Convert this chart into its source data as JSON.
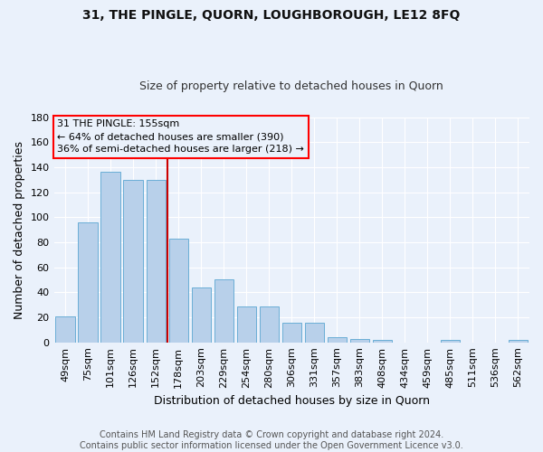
{
  "title": "31, THE PINGLE, QUORN, LOUGHBOROUGH, LE12 8FQ",
  "subtitle": "Size of property relative to detached houses in Quorn",
  "xlabel": "Distribution of detached houses by size in Quorn",
  "ylabel": "Number of detached properties",
  "bar_labels": [
    "49sqm",
    "75sqm",
    "101sqm",
    "126sqm",
    "152sqm",
    "178sqm",
    "203sqm",
    "229sqm",
    "254sqm",
    "280sqm",
    "306sqm",
    "331sqm",
    "357sqm",
    "383sqm",
    "408sqm",
    "434sqm",
    "459sqm",
    "485sqm",
    "511sqm",
    "536sqm",
    "562sqm"
  ],
  "bar_values": [
    21,
    96,
    136,
    130,
    130,
    83,
    44,
    50,
    29,
    29,
    16,
    16,
    4,
    3,
    2,
    0,
    0,
    2,
    0,
    0,
    2
  ],
  "bar_color": "#b8d0ea",
  "bar_edge_color": "#6aaed6",
  "bg_color": "#eaf1fb",
  "grid_color": "#ffffff",
  "vline_x": 4.5,
  "vline_color": "#cc0000",
  "annotation_line1": "31 THE PINGLE: 155sqm",
  "annotation_line2": "← 64% of detached houses are smaller (390)",
  "annotation_line3": "36% of semi-detached houses are larger (218) →",
  "ylim": [
    0,
    180
  ],
  "yticks": [
    0,
    20,
    40,
    60,
    80,
    100,
    120,
    140,
    160,
    180
  ],
  "footer": "Contains HM Land Registry data © Crown copyright and database right 2024.\nContains public sector information licensed under the Open Government Licence v3.0.",
  "title_fontsize": 10,
  "subtitle_fontsize": 9,
  "ylabel_fontsize": 9,
  "xlabel_fontsize": 9,
  "tick_fontsize": 8,
  "annotation_fontsize": 8,
  "footer_fontsize": 7
}
